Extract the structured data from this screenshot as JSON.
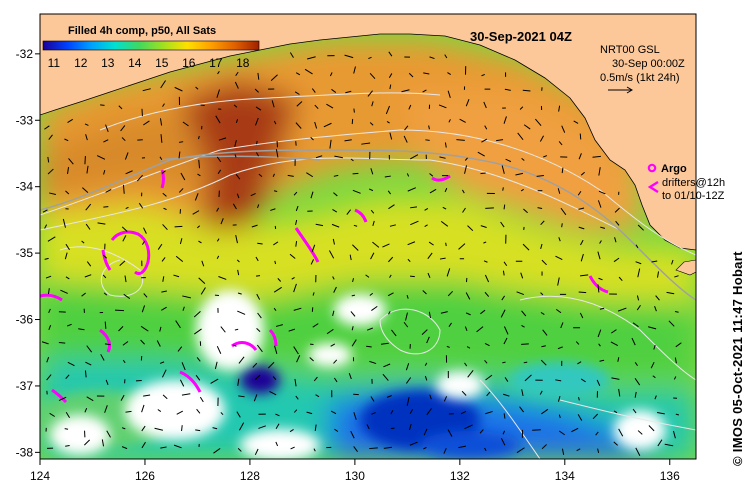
{
  "title": "30-Sep-2021 04Z",
  "colorbar": {
    "label": "Filled 4h comp, p50, All Sats",
    "ticks": [
      "11",
      "12",
      "13",
      "14",
      "15",
      "16",
      "17",
      "18"
    ],
    "vmin": 10.6,
    "vmax": 18.6,
    "stops": [
      "#1a0096",
      "#0040ff",
      "#00a0ff",
      "#00e0d0",
      "#40d860",
      "#a0e020",
      "#ffe000",
      "#ffa000",
      "#e06000",
      "#a02000"
    ]
  },
  "current_legend": {
    "line1": "NRT00 GSL",
    "line2": "30-Sep 00:00Z",
    "line3": "0.5m/s (1kt 24h)"
  },
  "argo_legend": {
    "argo": "Argo",
    "drifters_line1": "drifters@12h",
    "drifters_line2": "to 01/10-12Z"
  },
  "credit": "IMOS 05-Oct-2021 11:47 Hobart",
  "copyright_symbol": "©",
  "axes": {
    "x_ticks": [
      "124",
      "126",
      "128",
      "130",
      "132",
      "134",
      "136"
    ],
    "y_ticks": [
      "-32",
      "-33",
      "-34",
      "-35",
      "-36",
      "-37",
      "-38"
    ],
    "lon_range": [
      124,
      136.5
    ],
    "lat_range": [
      -38.1,
      -31.4
    ]
  },
  "colors": {
    "land": "#fcc89a",
    "no_data": "#ffffff",
    "argo": "#ff00ff",
    "vectors": "#000000",
    "contours": "#e8e8e8"
  }
}
